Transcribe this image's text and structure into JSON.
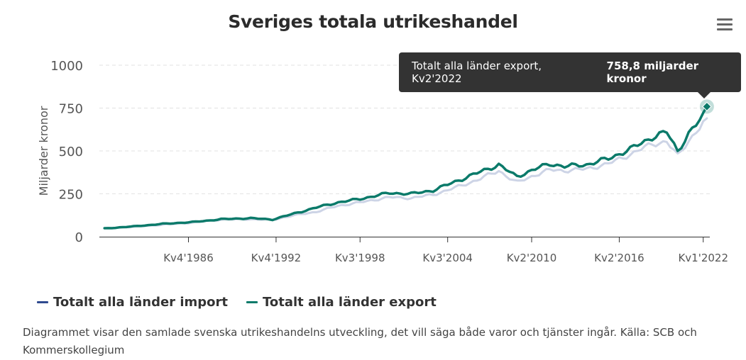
{
  "chart_data": {
    "type": "line",
    "title": "Sveriges totala utrikeshandel",
    "xlabel": "",
    "ylabel": "Miljarder kronor",
    "ylim": [
      0,
      1000
    ],
    "yticks": [
      "0",
      "250",
      "500",
      "750",
      "1000"
    ],
    "xticks": [
      {
        "label": "Kv4'1986",
        "year": 1986.75
      },
      {
        "label": "Kv4'1992",
        "year": 1992.75
      },
      {
        "label": "Kv3'1998",
        "year": 1998.5
      },
      {
        "label": "Kv3'2004",
        "year": 2004.5
      },
      {
        "label": "Kv2'2010",
        "year": 2010.25
      },
      {
        "label": "Kv2'2016",
        "year": 2016.25
      },
      {
        "label": "Kv1'2022",
        "year": 2022.0
      }
    ],
    "x_start": 1981.0,
    "x_end": 2022.25,
    "series": [
      {
        "name": "Totalt alla länder import",
        "color": "#2f4a8f",
        "anchors": [
          [
            1981.0,
            48
          ],
          [
            1983.0,
            58
          ],
          [
            1985.0,
            70
          ],
          [
            1987.0,
            82
          ],
          [
            1989.0,
            100
          ],
          [
            1991.0,
            102
          ],
          [
            1992.5,
            98
          ],
          [
            1994.0,
            125
          ],
          [
            1995.5,
            145
          ],
          [
            1997.0,
            180
          ],
          [
            1998.5,
            200
          ],
          [
            2000.5,
            230
          ],
          [
            2002.0,
            225
          ],
          [
            2003.5,
            245
          ],
          [
            2005.0,
            285
          ],
          [
            2006.5,
            330
          ],
          [
            2008.0,
            385
          ],
          [
            2009.2,
            315
          ],
          [
            2010.5,
            360
          ],
          [
            2011.5,
            390
          ],
          [
            2012.5,
            385
          ],
          [
            2014.0,
            395
          ],
          [
            2015.5,
            425
          ],
          [
            2017.0,
            480
          ],
          [
            2018.5,
            540
          ],
          [
            2019.5,
            555
          ],
          [
            2020.25,
            470
          ],
          [
            2021.0,
            560
          ],
          [
            2021.5,
            610
          ],
          [
            2022.25,
            690
          ]
        ],
        "noise": 0.035
      },
      {
        "name": "Totalt alla länder export",
        "color": "#0b7a6a",
        "anchors": [
          [
            1981.0,
            48
          ],
          [
            1983.0,
            60
          ],
          [
            1985.0,
            75
          ],
          [
            1987.0,
            85
          ],
          [
            1989.0,
            102
          ],
          [
            1991.0,
            108
          ],
          [
            1992.5,
            100
          ],
          [
            1994.0,
            135
          ],
          [
            1995.5,
            170
          ],
          [
            1997.0,
            200
          ],
          [
            1998.5,
            220
          ],
          [
            2000.5,
            255
          ],
          [
            2002.0,
            250
          ],
          [
            2003.5,
            270
          ],
          [
            2005.0,
            320
          ],
          [
            2006.5,
            370
          ],
          [
            2008.0,
            420
          ],
          [
            2009.2,
            350
          ],
          [
            2010.5,
            395
          ],
          [
            2011.5,
            425
          ],
          [
            2012.5,
            410
          ],
          [
            2014.0,
            420
          ],
          [
            2015.5,
            455
          ],
          [
            2017.0,
            510
          ],
          [
            2018.5,
            580
          ],
          [
            2019.5,
            610
          ],
          [
            2020.25,
            500
          ],
          [
            2021.0,
            600
          ],
          [
            2021.5,
            650
          ],
          [
            2022.0,
            705
          ],
          [
            2022.25,
            758.8
          ]
        ],
        "noise": 0.035
      }
    ],
    "tooltip": {
      "label": "Totalt alla länder export, Kv2'2022",
      "value": "758,8 miljarder kronor",
      "year": 2022.25,
      "y": 758.8
    }
  },
  "legend": {
    "import_label": "Totalt alla länder import",
    "export_label": "Totalt alla länder export",
    "import_color": "#2f4a8f",
    "export_color": "#0b7a6a"
  },
  "caption": "Diagrammet visar den samlade svenska utrikeshandelns utveckling, det vill säga både varor och tjänster ingår. Källa: SCB och Kommerskollegium"
}
